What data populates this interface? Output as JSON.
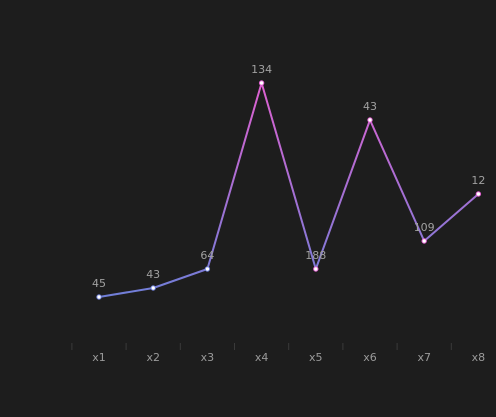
{
  "chart_data": {
    "type": "line",
    "categories": [
      "x1",
      "x2",
      "x3",
      "x4",
      "x5",
      "x6",
      "x7",
      "x8"
    ],
    "series": [
      {
        "values": [
          45,
          43,
          64,
          134,
          188,
          43,
          109,
          12
        ]
      }
    ],
    "data_labels": [
      "45",
      "43",
      "64",
      "134",
      "188",
      "43",
      "109",
      "12"
    ],
    "line_gradient": [
      "#6e7fd8",
      "#e060d0"
    ],
    "marker_fill": "#ffffff",
    "background": "#1d1d1d",
    "grid": false,
    "legend": "none"
  }
}
